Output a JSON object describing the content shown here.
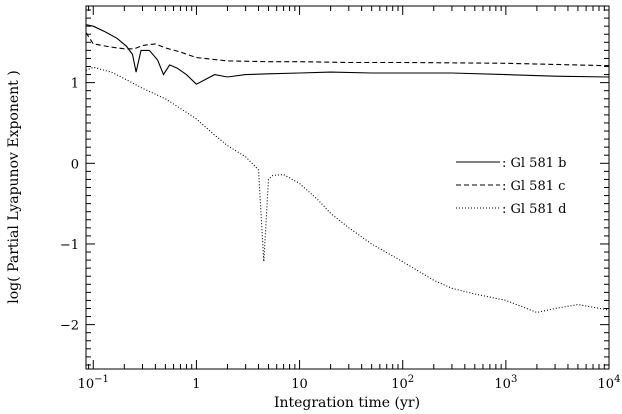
{
  "chart_data": {
    "type": "line",
    "title": "",
    "xlabel": "Integration time (yr)",
    "ylabel": "log( Partial Lyapunov Exponent )",
    "x_scale": "log",
    "xlim": [
      0.085,
      10000
    ],
    "ylim": [
      -2.55,
      1.95
    ],
    "x_ticks": [
      {
        "value": 0.1,
        "base": "10",
        "exp": "−1"
      },
      {
        "value": 1,
        "base": "1",
        "exp": ""
      },
      {
        "value": 10,
        "base": "10",
        "exp": ""
      },
      {
        "value": 100,
        "base": "10",
        "exp": "2"
      },
      {
        "value": 1000,
        "base": "10",
        "exp": "3"
      },
      {
        "value": 10000,
        "base": "10",
        "exp": "4"
      }
    ],
    "y_ticks": [
      {
        "value": 1,
        "label": "1"
      },
      {
        "value": 0,
        "label": "0"
      },
      {
        "value": -1,
        "label": "−1"
      },
      {
        "value": -2,
        "label": "−2"
      }
    ],
    "grid": false,
    "legend_position": "right",
    "series": [
      {
        "name": "Gl 581 b",
        "style": "solid",
        "x": [
          0.085,
          0.1,
          0.13,
          0.17,
          0.21,
          0.24,
          0.26,
          0.29,
          0.35,
          0.42,
          0.48,
          0.55,
          0.65,
          0.8,
          1.0,
          1.5,
          2.0,
          3.0,
          5.0,
          10,
          20,
          50,
          100,
          300,
          1000,
          3000,
          10000
        ],
        "y": [
          1.72,
          1.7,
          1.63,
          1.55,
          1.45,
          1.35,
          1.13,
          1.4,
          1.4,
          1.28,
          1.1,
          1.22,
          1.18,
          1.1,
          0.98,
          1.1,
          1.07,
          1.1,
          1.11,
          1.12,
          1.13,
          1.12,
          1.12,
          1.12,
          1.1,
          1.08,
          1.07
        ]
      },
      {
        "name": "Gl 581 c",
        "style": "dashed",
        "x": [
          0.085,
          0.1,
          0.15,
          0.2,
          0.25,
          0.3,
          0.4,
          0.5,
          0.7,
          1.0,
          2.0,
          5.0,
          10,
          30,
          100,
          1000,
          10000
        ],
        "y": [
          1.62,
          1.48,
          1.44,
          1.42,
          1.42,
          1.46,
          1.48,
          1.43,
          1.38,
          1.31,
          1.27,
          1.26,
          1.26,
          1.25,
          1.25,
          1.24,
          1.21
        ]
      },
      {
        "name": "Gl 581 d",
        "style": "dotted",
        "x": [
          0.085,
          0.1,
          0.15,
          0.2,
          0.3,
          0.5,
          0.7,
          1.0,
          1.5,
          2.0,
          3.0,
          4.0,
          4.5,
          5.0,
          5.5,
          7.0,
          10,
          15,
          20,
          30,
          50,
          100,
          200,
          300,
          500,
          1000,
          2000,
          3000,
          5000,
          10000
        ],
        "y": [
          1.15,
          1.19,
          1.13,
          1.05,
          0.93,
          0.8,
          0.68,
          0.55,
          0.35,
          0.22,
          0.08,
          -0.08,
          -1.22,
          -0.2,
          -0.15,
          -0.14,
          -0.25,
          -0.45,
          -0.62,
          -0.8,
          -1.0,
          -1.22,
          -1.45,
          -1.55,
          -1.62,
          -1.7,
          -1.85,
          -1.8,
          -1.75,
          -1.82
        ]
      }
    ]
  }
}
